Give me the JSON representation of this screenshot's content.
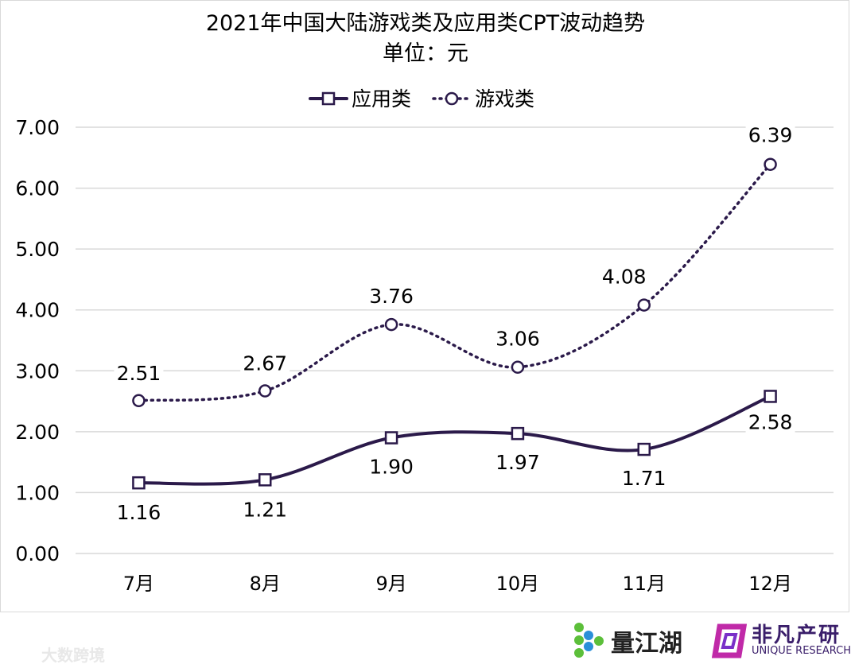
{
  "chart_data": {
    "type": "line",
    "title": "2021年中国大陆游戏类及应用类CPT波动趋势",
    "subtitle": "单位：元",
    "categories": [
      "7月",
      "8月",
      "9月",
      "10月",
      "11月",
      "12月"
    ],
    "series": [
      {
        "name": "应用类",
        "values": [
          1.16,
          1.21,
          1.9,
          1.97,
          1.71,
          2.58
        ],
        "labels": [
          "1.16",
          "1.21",
          "1.90",
          "1.97",
          "1.71",
          "2.58"
        ],
        "marker": "square",
        "line": "solid",
        "color": "#2b1a4a"
      },
      {
        "name": "游戏类",
        "values": [
          2.51,
          2.67,
          3.76,
          3.06,
          4.08,
          6.39
        ],
        "labels": [
          "2.51",
          "2.67",
          "3.76",
          "3.06",
          "4.08",
          "6.39"
        ],
        "marker": "circle",
        "line": "dotted",
        "color": "#2b1a4a"
      }
    ],
    "ylim": [
      0,
      7
    ],
    "yticks": [
      "0.00",
      "1.00",
      "2.00",
      "3.00",
      "4.00",
      "5.00",
      "6.00",
      "7.00"
    ],
    "grid": true,
    "legend": "top-center",
    "xlabel": "",
    "ylabel": ""
  },
  "footer": {
    "logo1": "量江湖",
    "logo2": "非凡产研",
    "logo2_sub": "UNIQUE RESEARCH",
    "watermark": "大数跨境"
  }
}
